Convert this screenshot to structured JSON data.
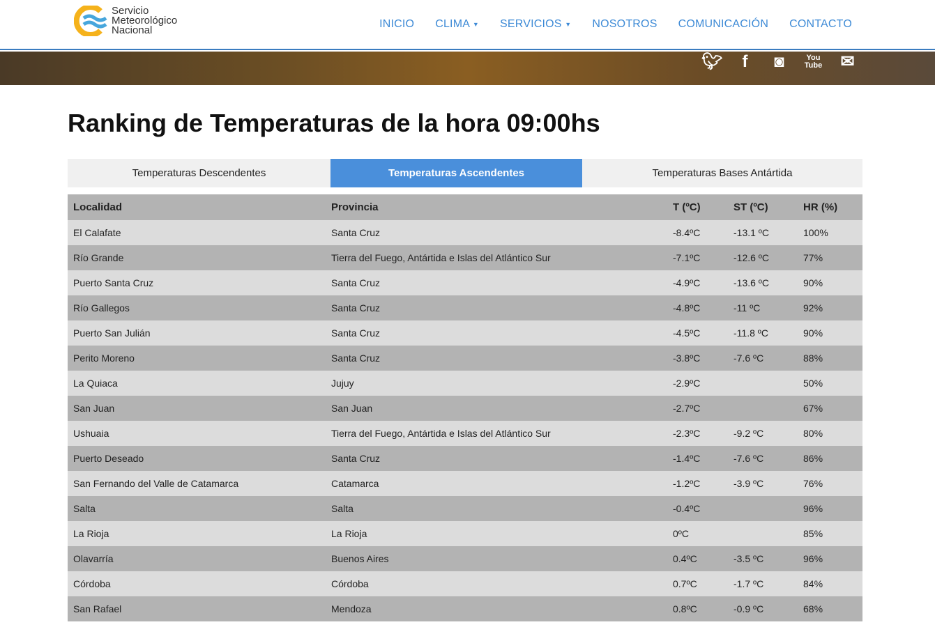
{
  "brand": {
    "line1": "Servicio",
    "line2": "Meteorológico",
    "line3": "Nacional"
  },
  "nav": [
    {
      "label": "INICIO"
    },
    {
      "label": "CLIMA",
      "dropdown": true
    },
    {
      "label": "SERVICIOS",
      "dropdown": true
    },
    {
      "label": "NOSOTROS"
    },
    {
      "label": "COMUNICACIÓN"
    },
    {
      "label": "CONTACTO"
    }
  ],
  "social": [
    "twitter-icon",
    "facebook-icon",
    "instagram-icon",
    "youtube-icon",
    "mail-icon"
  ],
  "title": "Ranking de Temperaturas de la hora 09:00hs",
  "tabs": [
    {
      "label": "Temperaturas Descendentes",
      "active": false
    },
    {
      "label": "Temperaturas Ascendentes",
      "active": true
    },
    {
      "label": "Temperaturas Bases Antártida",
      "active": false
    }
  ],
  "table": {
    "headers": [
      "Localidad",
      "Provincia",
      "T (ºC)",
      "ST (ºC)",
      "HR (%)"
    ],
    "rows": [
      [
        "El Calafate",
        "Santa Cruz",
        "-8.4ºC",
        "-13.1 ºC",
        "100%"
      ],
      [
        "Río Grande",
        "Tierra del Fuego, Antártida e Islas del Atlántico Sur",
        "-7.1ºC",
        "-12.6 ºC",
        "77%"
      ],
      [
        "Puerto Santa Cruz",
        "Santa Cruz",
        "-4.9ºC",
        "-13.6 ºC",
        "90%"
      ],
      [
        "Río Gallegos",
        "Santa Cruz",
        "-4.8ºC",
        "-11 ºC",
        "92%"
      ],
      [
        "Puerto San Julián",
        "Santa Cruz",
        "-4.5ºC",
        "-11.8 ºC",
        "90%"
      ],
      [
        "Perito Moreno",
        "Santa Cruz",
        "-3.8ºC",
        "-7.6 ºC",
        "88%"
      ],
      [
        "La Quiaca",
        "Jujuy",
        "-2.9ºC",
        "",
        "50%"
      ],
      [
        "San Juan",
        "San Juan",
        "-2.7ºC",
        "",
        "67%"
      ],
      [
        "Ushuaia",
        "Tierra del Fuego, Antártida e Islas del Atlántico Sur",
        "-2.3ºC",
        "-9.2 ºC",
        "80%"
      ],
      [
        "Puerto Deseado",
        "Santa Cruz",
        "-1.4ºC",
        "-7.6 ºC",
        "86%"
      ],
      [
        "San Fernando del Valle de Catamarca",
        "Catamarca",
        "-1.2ºC",
        "-3.9 ºC",
        "76%"
      ],
      [
        "Salta",
        "Salta",
        "-0.4ºC",
        "",
        "96%"
      ],
      [
        "La Rioja",
        "La Rioja",
        "0ºC",
        "",
        "85%"
      ],
      [
        "Olavarría",
        "Buenos Aires",
        "0.4ºC",
        "-3.5 ºC",
        "96%"
      ],
      [
        "Córdoba",
        "Córdoba",
        "0.7ºC",
        "-1.7 ºC",
        "84%"
      ],
      [
        "San Rafael",
        "Mendoza",
        "0.8ºC",
        "-0.9 ºC",
        "68%"
      ]
    ]
  }
}
